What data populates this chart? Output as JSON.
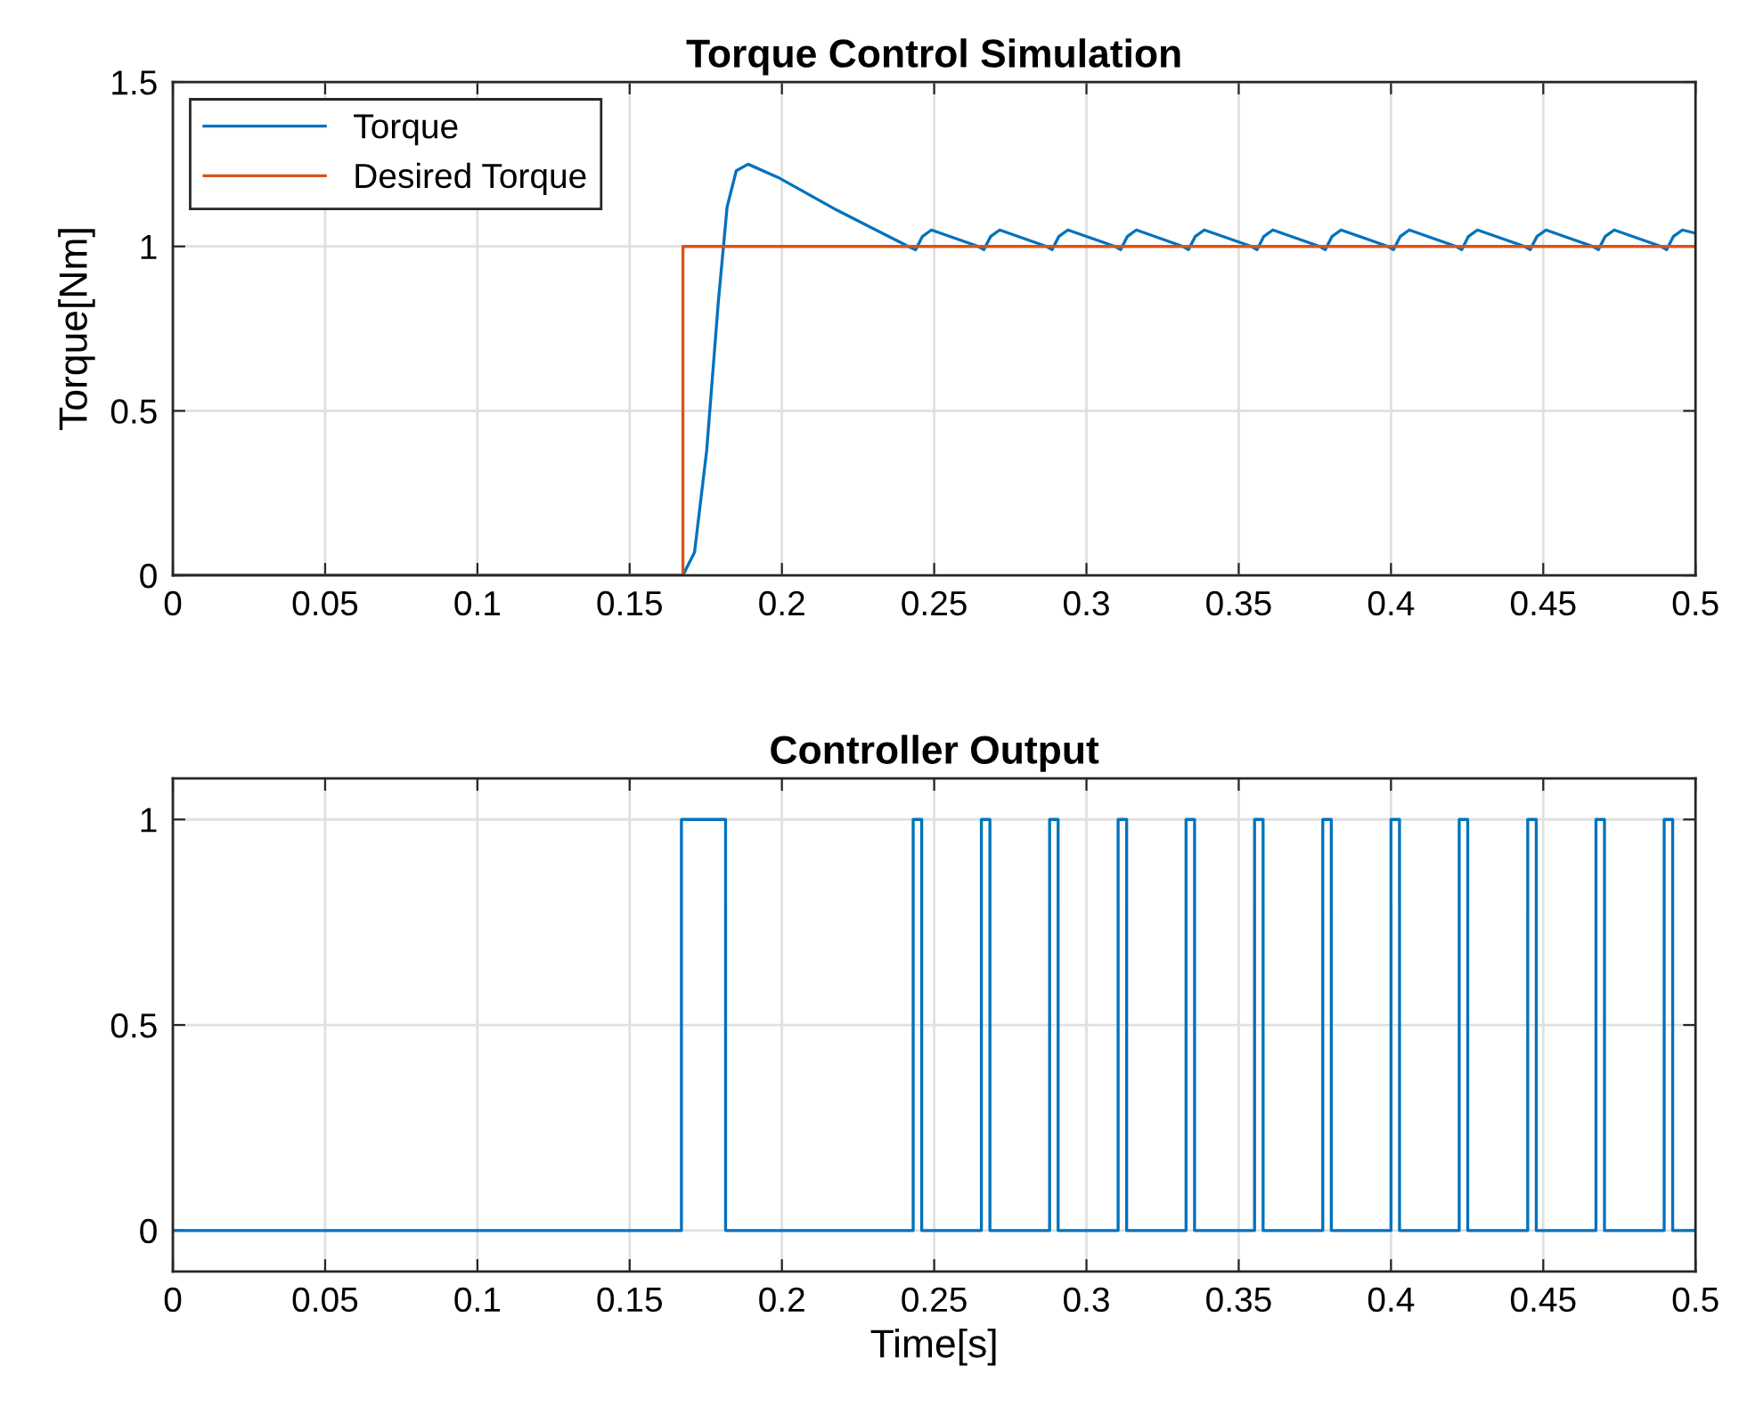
{
  "chart_data": [
    {
      "type": "line",
      "title": "Torque Control Simulation",
      "ylabel": "Torque[Nm]",
      "xlim": [
        0,
        0.5
      ],
      "ylim": [
        0,
        1.5
      ],
      "xticks": [
        0,
        0.05,
        0.1,
        0.15,
        0.2,
        0.25,
        0.3,
        0.35,
        0.4,
        0.45,
        0.5
      ],
      "yticks": [
        0,
        0.5,
        1,
        1.5
      ],
      "grid": true,
      "legend": "top left",
      "series": [
        {
          "name": "Torque",
          "color": "#0072bd",
          "x": [
            0,
            0.1675,
            0.1713,
            0.1753,
            0.1791,
            0.182,
            0.185,
            0.1889,
            0.1987,
            0.2181,
            0.2415,
            0.2439,
            0.2461,
            0.2491,
            0.2645,
            0.2663,
            0.2685,
            0.2715,
            0.2869,
            0.2887,
            0.2909,
            0.2939,
            0.3094,
            0.3112,
            0.3134,
            0.3164,
            0.3317,
            0.3335,
            0.3357,
            0.3387,
            0.3542,
            0.356,
            0.3582,
            0.3612,
            0.3766,
            0.3784,
            0.3806,
            0.3836,
            0.399,
            0.4008,
            0.403,
            0.406,
            0.4214,
            0.4232,
            0.4254,
            0.4284,
            0.4439,
            0.4457,
            0.4479,
            0.4509,
            0.4663,
            0.4681,
            0.4703,
            0.4733,
            0.4887,
            0.4905,
            0.4927,
            0.4957,
            0.5
          ],
          "values": [
            0,
            0,
            0.07,
            0.38,
            0.83,
            1.12,
            1.23,
            1.25,
            1.21,
            1.11,
            1.0,
            0.99,
            1.03,
            1.05,
            1.0,
            0.99,
            1.03,
            1.05,
            1.0,
            0.99,
            1.03,
            1.05,
            1.0,
            0.99,
            1.03,
            1.05,
            1.0,
            0.99,
            1.03,
            1.05,
            1.0,
            0.99,
            1.03,
            1.05,
            1.0,
            0.99,
            1.03,
            1.05,
            1.0,
            0.99,
            1.03,
            1.05,
            1.0,
            0.99,
            1.03,
            1.05,
            1.0,
            0.99,
            1.03,
            1.05,
            1.0,
            0.99,
            1.03,
            1.05,
            1.0,
            0.99,
            1.03,
            1.05,
            1.04
          ]
        },
        {
          "name": "Desired Torque",
          "type": "step",
          "color": "#d95319",
          "x": [
            0,
            0.1675,
            0.5
          ],
          "values": [
            0,
            1,
            1
          ]
        }
      ]
    },
    {
      "type": "step",
      "title": "Controller Output",
      "xlabel": "Time[s]",
      "xlim": [
        0,
        0.5
      ],
      "ylim": [
        -0.1,
        1.1
      ],
      "xticks": [
        0,
        0.05,
        0.1,
        0.15,
        0.2,
        0.25,
        0.3,
        0.35,
        0.4,
        0.45,
        0.5
      ],
      "yticks": [
        0,
        0.5,
        1
      ],
      "grid": true,
      "series": [
        {
          "color": "#0072bd",
          "x": [
            0,
            0.167,
            0.1815,
            0.2431,
            0.2459,
            0.2655,
            0.2683,
            0.2879,
            0.2907,
            0.3104,
            0.3132,
            0.3327,
            0.3355,
            0.3552,
            0.358,
            0.3776,
            0.3804,
            0.4,
            0.4028,
            0.4224,
            0.4252,
            0.4449,
            0.4477,
            0.4673,
            0.4701,
            0.4897,
            0.4925,
            0.5
          ],
          "values": [
            0,
            1,
            0,
            1,
            0,
            1,
            0,
            1,
            0,
            1,
            0,
            1,
            0,
            1,
            0,
            1,
            0,
            1,
            0,
            1,
            0,
            1,
            0,
            1,
            0,
            1,
            0,
            0
          ]
        }
      ]
    }
  ]
}
